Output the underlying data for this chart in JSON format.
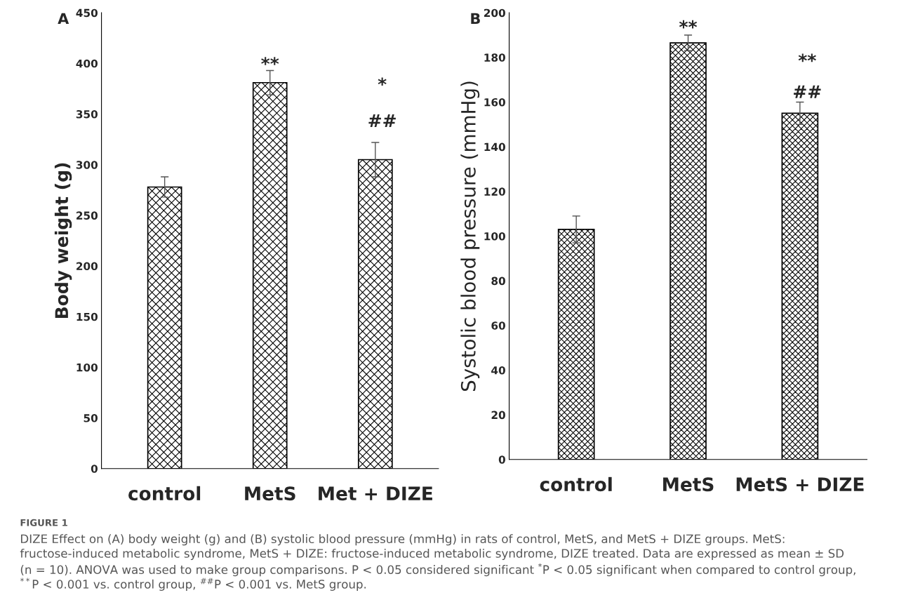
{
  "chart_data": [
    {
      "type": "bar",
      "title": "A",
      "ylabel": "Body weight (g)",
      "categories": [
        "control",
        "MetS",
        "Met + DIZE"
      ],
      "series": [
        {
          "color": "#000000",
          "values": [
            278,
            381,
            305
          ],
          "errors": [
            10,
            12,
            17
          ]
        }
      ],
      "ylim": [
        0,
        450
      ],
      "yticks": [
        0,
        50,
        100,
        150,
        200,
        250,
        300,
        350,
        400,
        450
      ],
      "grid": false,
      "legend": false,
      "annotations": [
        "**",
        "*",
        "##"
      ]
    },
    {
      "type": "bar",
      "title": "B",
      "ylabel": "Systolic blood pressure (mmHg)",
      "categories": [
        "control",
        "MetS",
        "MetS + DIZE"
      ],
      "series": [
        {
          "color": "#000000",
          "values": [
            103,
            186.5,
            155
          ],
          "errors": [
            6,
            3.5,
            5
          ]
        }
      ],
      "ylim": [
        0,
        200
      ],
      "yticks": [
        0,
        20,
        40,
        60,
        80,
        100,
        120,
        140,
        160,
        180,
        200
      ],
      "grid": false,
      "legend": false,
      "annotations": [
        "**",
        "**",
        "##",
        "FIGURE 1",
        "DIZE Effect on (A) body weight (g) and (B) systolic blood pressure (mmHg) in rats of control, MetS, and MetS + DIZE groups. MetS:",
        "fructose-induced metabolic syndrome, MetS + DIZE: fructose-induced metabolic syndrome, DIZE treated. Data are expressed as mean ± SD",
        "(n = 10). ANOVA was used to make group comparisons. P < 0.05 considered significant $^{*}$P < 0.05 significant when compared to control group,",
        "$^{**}$P < 0.001 vs. control group, $^{##}$P < 0.001 vs. MetS group."
      ]
    }
  ]
}
